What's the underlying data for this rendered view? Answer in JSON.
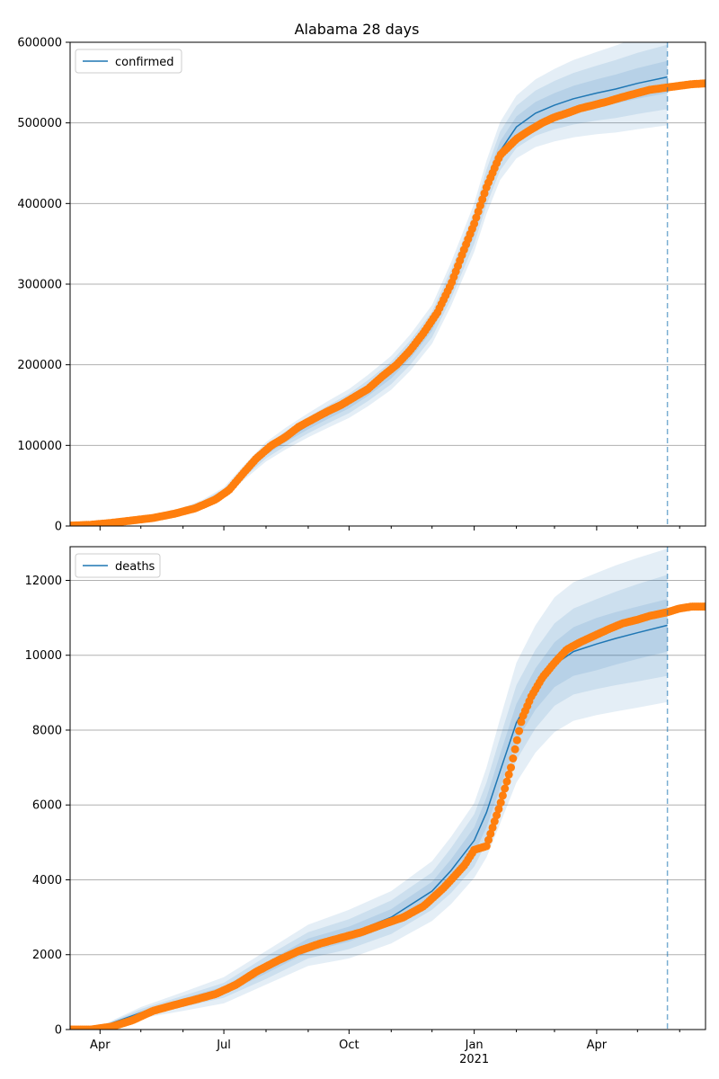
{
  "title": "Alabama 28 days",
  "colors": {
    "fit_line": "#1f77b4",
    "band": "#1f77b4",
    "observed": "#ff7f0e",
    "grid": "#b0b0b0",
    "vline": "#1f77b4"
  },
  "x_axis": {
    "start": "2020-03-10",
    "end": "2021-06-20",
    "tick_labels": [
      {
        "date": "2020-04-01",
        "label": "Apr"
      },
      {
        "date": "2020-07-01",
        "label": "Jul"
      },
      {
        "date": "2020-10-01",
        "label": "Oct"
      },
      {
        "date": "2021-01-01",
        "label": "Jan"
      },
      {
        "date": "2021-04-01",
        "label": "Apr"
      }
    ],
    "year_label": {
      "date": "2021-01-01",
      "label": "2021"
    }
  },
  "chart_data": [
    {
      "type": "line",
      "legend": "confirmed",
      "legend_position": "upper-left",
      "grid": "horizontal",
      "ylim": [
        0,
        600000
      ],
      "yticks": [
        0,
        100000,
        200000,
        300000,
        400000,
        500000,
        600000
      ],
      "forecast_cutoff": "2021-05-23",
      "fit_line": {
        "x": [
          "2020-03-10",
          "2020-04-01",
          "2020-05-01",
          "2020-06-01",
          "2020-06-15",
          "2020-07-01",
          "2020-07-15",
          "2020-08-01",
          "2020-08-15",
          "2020-09-01",
          "2020-09-15",
          "2020-10-01",
          "2020-10-15",
          "2020-11-01",
          "2020-11-15",
          "2020-12-01",
          "2020-12-15",
          "2021-01-01",
          "2021-01-10",
          "2021-01-20",
          "2021-02-01",
          "2021-02-15",
          "2021-03-01",
          "2021-03-15",
          "2021-04-01",
          "2021-04-15",
          "2021-05-01",
          "2021-05-23"
        ],
        "y": [
          1000,
          1500,
          8000,
          20000,
          28000,
          42000,
          65000,
          92000,
          108000,
          125000,
          138000,
          152000,
          168000,
          190000,
          215000,
          250000,
          300000,
          370000,
          420000,
          465000,
          495000,
          512000,
          522000,
          530000,
          537000,
          542000,
          549000,
          557000
        ]
      },
      "band_inner_width": [
        0,
        100,
        500,
        1000,
        1400,
        2000,
        3000,
        4000,
        4500,
        5000,
        5500,
        6000,
        6500,
        7000,
        7500,
        8000,
        9000,
        10000,
        11000,
        12000,
        13000,
        14000,
        15000,
        16000,
        17000,
        18000,
        19000,
        20000
      ],
      "band_mid_width": [
        0,
        200,
        1000,
        2000,
        2800,
        4000,
        6000,
        8000,
        9000,
        10000,
        11000,
        12000,
        13000,
        14000,
        15000,
        16000,
        18000,
        20000,
        22000,
        24000,
        26000,
        28000,
        30000,
        32000,
        34000,
        36000,
        38000,
        40000
      ],
      "band_outer_width": [
        0,
        300,
        1500,
        3000,
        4200,
        6000,
        9000,
        12000,
        13500,
        15000,
        16500,
        18000,
        19500,
        21000,
        22500,
        24000,
        27000,
        30000,
        33000,
        36000,
        39000,
        42000,
        45000,
        48000,
        51000,
        54000,
        57000,
        60000
      ],
      "observed": {
        "x": [
          "2020-03-10",
          "2020-03-25",
          "2020-04-10",
          "2020-04-25",
          "2020-05-10",
          "2020-05-25",
          "2020-06-10",
          "2020-06-25",
          "2020-07-05",
          "2020-07-15",
          "2020-07-25",
          "2020-08-05",
          "2020-08-15",
          "2020-08-25",
          "2020-09-05",
          "2020-09-15",
          "2020-09-25",
          "2020-10-05",
          "2020-10-15",
          "2020-10-25",
          "2020-11-05",
          "2020-11-15",
          "2020-11-25",
          "2020-12-05",
          "2020-12-15",
          "2020-12-25",
          "2021-01-01",
          "2021-01-10",
          "2021-01-20",
          "2021-02-01",
          "2021-02-10",
          "2021-02-20",
          "2021-03-01",
          "2021-03-10",
          "2021-03-20",
          "2021-04-01",
          "2021-04-10",
          "2021-04-20",
          "2021-05-01",
          "2021-05-10",
          "2021-05-23",
          "2021-06-01",
          "2021-06-10",
          "2021-06-20"
        ],
        "y": [
          500,
          1500,
          4000,
          7000,
          10000,
          15000,
          22000,
          33000,
          45000,
          65000,
          84000,
          100000,
          110000,
          123000,
          133000,
          142000,
          150000,
          160000,
          170000,
          185000,
          200000,
          218000,
          240000,
          265000,
          300000,
          345000,
          375000,
          420000,
          460000,
          480000,
          490000,
          500000,
          507000,
          512000,
          518000,
          523000,
          527000,
          532000,
          537000,
          541000,
          544000,
          546000,
          548000,
          549000
        ]
      }
    },
    {
      "type": "line",
      "legend": "deaths",
      "legend_position": "upper-left",
      "grid": "horizontal",
      "ylim": [
        0,
        12900
      ],
      "yticks": [
        0,
        2000,
        4000,
        6000,
        8000,
        10000,
        12000
      ],
      "forecast_cutoff": "2021-05-23",
      "fit_line": {
        "x": [
          "2020-03-10",
          "2020-04-01",
          "2020-05-01",
          "2020-06-01",
          "2020-07-01",
          "2020-08-01",
          "2020-09-01",
          "2020-10-01",
          "2020-11-01",
          "2020-12-01",
          "2020-12-15",
          "2021-01-01",
          "2021-01-10",
          "2021-01-20",
          "2021-02-01",
          "2021-02-15",
          "2021-03-01",
          "2021-03-15",
          "2021-04-01",
          "2021-04-15",
          "2021-05-01",
          "2021-05-23"
        ],
        "y": [
          0,
          60,
          450,
          750,
          1050,
          1650,
          2250,
          2550,
          3000,
          3700,
          4250,
          5050,
          5800,
          6900,
          8200,
          9100,
          9750,
          10100,
          10300,
          10450,
          10600,
          10800
        ]
      },
      "band_inner_width": [
        0,
        10,
        50,
        80,
        100,
        150,
        180,
        200,
        220,
        250,
        300,
        350,
        400,
        450,
        500,
        550,
        600,
        650,
        700,
        700,
        700,
        700
      ],
      "band_mid_width": [
        0,
        20,
        100,
        150,
        200,
        300,
        350,
        400,
        450,
        500,
        600,
        700,
        800,
        900,
        1000,
        1050,
        1100,
        1150,
        1200,
        1250,
        1300,
        1350
      ],
      "band_outer_width": [
        0,
        30,
        150,
        250,
        350,
        450,
        550,
        650,
        700,
        800,
        900,
        1000,
        1200,
        1400,
        1600,
        1700,
        1800,
        1850,
        1900,
        1950,
        2000,
        2050
      ],
      "observed": {
        "x": [
          "2020-03-10",
          "2020-03-25",
          "2020-04-10",
          "2020-04-25",
          "2020-05-10",
          "2020-05-25",
          "2020-06-10",
          "2020-06-25",
          "2020-07-10",
          "2020-07-25",
          "2020-08-10",
          "2020-08-25",
          "2020-09-10",
          "2020-09-25",
          "2020-10-10",
          "2020-10-25",
          "2020-11-10",
          "2020-11-25",
          "2020-12-10",
          "2020-12-25",
          "2021-01-01",
          "2021-01-10",
          "2021-01-20",
          "2021-01-28",
          "2021-02-05",
          "2021-02-12",
          "2021-02-20",
          "2021-03-01",
          "2021-03-10",
          "2021-03-20",
          "2021-04-01",
          "2021-04-10",
          "2021-04-20",
          "2021-05-01",
          "2021-05-10",
          "2021-05-23",
          "2021-06-01",
          "2021-06-10",
          "2021-06-20"
        ],
        "y": [
          0,
          0,
          80,
          250,
          500,
          650,
          800,
          950,
          1200,
          1550,
          1850,
          2100,
          2300,
          2450,
          2600,
          2800,
          3000,
          3300,
          3800,
          4400,
          4800,
          4900,
          6000,
          7000,
          8300,
          8900,
          9400,
          9800,
          10150,
          10350,
          10550,
          10700,
          10850,
          10950,
          11050,
          11150,
          11250,
          11300,
          11300
        ]
      }
    }
  ]
}
